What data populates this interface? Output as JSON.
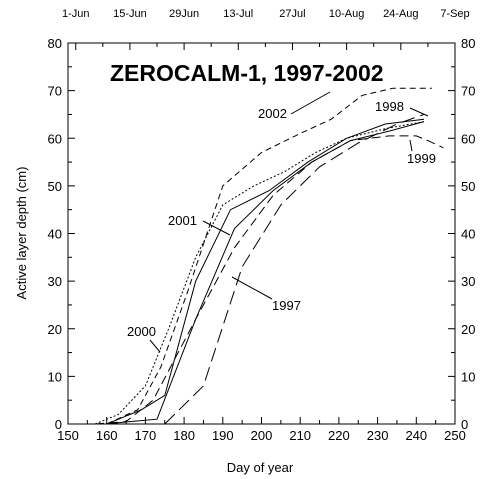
{
  "chart_data": {
    "type": "line",
    "title": "ZEROCALM-1, 1997-2002",
    "xlabel": "Day of year",
    "ylabel": "Active layer depth (cm)",
    "xlim": [
      150,
      250
    ],
    "ylim": [
      0,
      80
    ],
    "x_ticks": [
      "150",
      "160",
      "170",
      "180",
      "190",
      "200",
      "210",
      "220",
      "230",
      "240",
      "250"
    ],
    "y_ticks": [
      "0",
      "10",
      "20",
      "30",
      "40",
      "50",
      "60",
      "70",
      "80"
    ],
    "top_axis": {
      "labels": [
        "1-Jun",
        "15-Jun",
        "29Jun",
        "13-Jul",
        "27Jul",
        "10-Aug",
        "24-Aug",
        "7-Sep"
      ],
      "days": [
        152,
        166,
        180,
        194,
        208,
        222,
        236,
        250
      ]
    },
    "grid": false,
    "series": [
      {
        "name": "1997",
        "style": "solid",
        "x": [
          160,
          166,
          173,
          183,
          193,
          203,
          213,
          223,
          233,
          242
        ],
        "y": [
          0,
          0.5,
          1,
          22,
          41,
          49,
          55,
          59.5,
          61.5,
          63.5
        ]
      },
      {
        "name": "1998",
        "style": "long-dash",
        "x": [
          175,
          185,
          195,
          205,
          215,
          225,
          235,
          242
        ],
        "y": [
          0,
          8,
          33,
          46,
          54,
          59,
          63,
          65
        ]
      },
      {
        "name": "1999",
        "style": "dash",
        "x": [
          157,
          165,
          172,
          183,
          193,
          203,
          213,
          223,
          233,
          240,
          243,
          247
        ],
        "y": [
          0,
          0.5,
          5,
          22,
          37,
          48,
          55,
          59.5,
          60.5,
          60.5,
          59.5,
          58
        ]
      },
      {
        "name": "2000",
        "style": "dot",
        "x": [
          157,
          163,
          170,
          176,
          183,
          190,
          198,
          206,
          214,
          222,
          232,
          242
        ],
        "y": [
          0,
          2,
          8,
          20,
          35,
          46,
          50,
          53,
          57,
          60,
          62,
          63.5
        ]
      },
      {
        "name": "2001",
        "style": "solid",
        "x": [
          160,
          169,
          175,
          183,
          192,
          202,
          212,
          222,
          232,
          242
        ],
        "y": [
          0,
          3,
          6,
          30,
          45,
          49,
          55,
          60,
          63,
          64
        ]
      },
      {
        "name": "2002",
        "style": "short-dash",
        "x": [
          160,
          168,
          174,
          181,
          190,
          200,
          210,
          218,
          226,
          234,
          244
        ],
        "y": [
          0,
          3,
          12,
          28,
          50,
          57,
          61,
          64,
          69,
          70.5,
          70.5
        ]
      }
    ]
  }
}
